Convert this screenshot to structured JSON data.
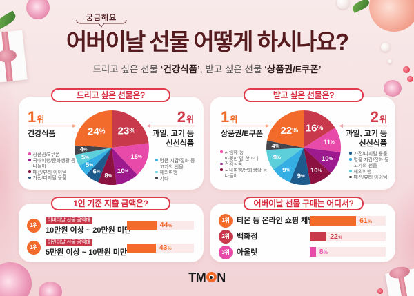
{
  "header": {
    "kicker": "궁금해요",
    "title": "어버이날 선물 어떻게 하시나요?",
    "subtitle": {
      "part1": "드리고 싶은 선물 ",
      "highlight1": "‘건강식품’",
      "part2": ", 받고 싶은 선물 ",
      "highlight2": "‘상품권/E쿠폰’"
    }
  },
  "give": {
    "title": "드리고 싶은 선물은?",
    "first": {
      "num": "1",
      "suffix": "위",
      "label": "건강식품"
    },
    "second": {
      "num": "2",
      "suffix": "위",
      "line1": "과일, 고기 등",
      "line2": "신선식품"
    },
    "legend_left": [
      {
        "lines": [
          "상품권/E쿠폰"
        ],
        "color": "#e84aa9"
      },
      {
        "lines": [
          "국내여행/문화생활 등",
          "나들이"
        ],
        "color": "#9c1a8e"
      },
      {
        "lines": [
          "패션/뷰티 아이템"
        ],
        "color": "#8b1240"
      },
      {
        "lines": [
          "가전/디지털 용품"
        ],
        "color": "#1c5b8c"
      }
    ],
    "legend_right": [
      {
        "lines": [
          "명품 지갑/잡화 등",
          "고가의 선물"
        ],
        "color": "#35aee4"
      },
      {
        "lines": [
          "해외여행"
        ],
        "color": "#5ccfdb"
      },
      {
        "lines": [
          "기타"
        ],
        "color": "#45444a"
      }
    ]
  },
  "receive": {
    "title": "받고 싶은 선물은?",
    "first": {
      "num": "1",
      "suffix": "위",
      "label": "상품권/E쿠폰"
    },
    "second": {
      "num": "2",
      "suffix": "위",
      "line1": "과일, 고기 등",
      "line2": "신선식품"
    },
    "legend_left": [
      {
        "lines": [
          "사랑해 등",
          "따뜻한 말 한마디"
        ],
        "color": "#e84aa9"
      },
      {
        "lines": [
          "건강식품"
        ],
        "color": "#9c1a8e"
      },
      {
        "lines": [
          "국내여행/문화생활 등",
          "나들이"
        ],
        "color": "#8b1240"
      }
    ],
    "legend_right": [
      {
        "lines": [
          "가전/디지털 용품"
        ],
        "color": "#1c5b8c"
      },
      {
        "lines": [
          "명품 지갑/잡화 등",
          "고가의 선물"
        ],
        "color": "#35aee4"
      },
      {
        "lines": [
          "해외여행"
        ],
        "color": "#5ccfdb"
      },
      {
        "lines": [
          "패션/뷰티 아이템"
        ],
        "color": "#45444a"
      }
    ]
  },
  "spend": {
    "title": "1인 기준 지출 금액은?",
    "rows": [
      {
        "rank": "1위",
        "tag": "어버이날 선물 금액대",
        "label": "10만원 이상 ~ 20만원 미만",
        "rank_color": "#f26b2a"
      },
      {
        "rank": "1위",
        "tag": "어린이날 선물 금액대",
        "label": "5만원 이상 ~ 10만원 미만",
        "rank_color": "#f26b2a"
      }
    ]
  },
  "where": {
    "title": "어버이날 선물 구매는 어디서?",
    "rows": [
      {
        "rank": "1위",
        "label": "티몬 등 온라인 쇼핑 채널",
        "rank_color": "#f26b2a"
      },
      {
        "rank": "2위",
        "label": "백화점",
        "rank_color": "#c83a4b"
      },
      {
        "rank": "3위",
        "label": "아울렛",
        "rank_color": "#e84aa9"
      }
    ]
  },
  "brand": {
    "prefix": "TM",
    "suffix": "N",
    "accent": "#f26b2a"
  },
  "chart_data": [
    {
      "type": "pie",
      "title": "드리고 싶은 선물은?",
      "start": "12 o'clock, clockwise",
      "categories": [
        "과일, 고기 등 신선식품",
        "상품권/E쿠폰",
        "국내여행/문화생활 등 나들이",
        "패션/뷰티 아이템",
        "가전/디지털 용품",
        "명품 지갑/잡화 등 고가의 선물",
        "해외여행",
        "기타",
        "건강식품"
      ],
      "values": [
        23,
        15,
        10,
        8,
        6,
        5,
        5,
        4,
        24
      ],
      "colors": [
        "#c83a4b",
        "#e84aa9",
        "#9c1a8e",
        "#8b1240",
        "#1c5b8c",
        "#35aee4",
        "#5ccfdb",
        "#45444a",
        "#f26b2a"
      ],
      "unit": "%"
    },
    {
      "type": "pie",
      "title": "받고 싶은 선물은?",
      "start": "12 o'clock, clockwise",
      "categories": [
        "과일, 고기 등 신선식품",
        "사랑해 등 따뜻한 말 한마디",
        "건강식품",
        "국내여행/문화생활 등 나들이",
        "가전/디지털 용품",
        "명품 지갑/잡화 등 고가의 선물",
        "해외여행",
        "패션/뷰티 아이템",
        "상품권/E쿠폰"
      ],
      "values": [
        16,
        11,
        10,
        10,
        9,
        9,
        9,
        4,
        22
      ],
      "colors": [
        "#c83a4b",
        "#e84aa9",
        "#9c1a8e",
        "#8b1240",
        "#1c5b8c",
        "#35aee4",
        "#5ccfdb",
        "#45444a",
        "#f26b2a"
      ],
      "unit": "%"
    },
    {
      "type": "bar",
      "orientation": "horizontal",
      "title": "1인 기준 지출 금액은?",
      "categories": [
        "어버이날 선물 금액대: 10만원 이상 ~ 20만원 미만",
        "어린이날 선물 금액대: 5만원 이상 ~ 10만원 미만"
      ],
      "values": [
        44,
        43
      ],
      "colors": [
        "#f26b2a",
        "#f26b2a"
      ],
      "unit": "%",
      "xlim": [
        0,
        100
      ]
    },
    {
      "type": "bar",
      "orientation": "horizontal",
      "title": "어버이날 선물 구매는 어디서?",
      "categories": [
        "티몬 등 온라인 쇼핑 채널",
        "백화점",
        "아울렛"
      ],
      "values": [
        61,
        22,
        8
      ],
      "colors": [
        "#f26b2a",
        "#c83a4b",
        "#e84aa9"
      ],
      "unit": "%",
      "xlim": [
        0,
        100
      ]
    }
  ]
}
